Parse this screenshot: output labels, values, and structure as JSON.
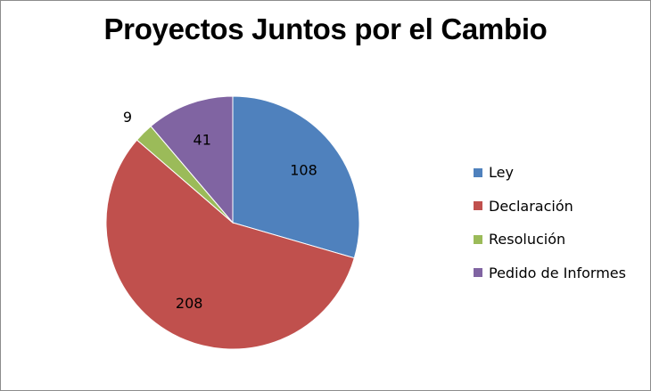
{
  "chart_data": {
    "type": "pie",
    "title": "Proyectos Juntos por el Cambio",
    "categories": [
      "Ley",
      "Declaración",
      "Resolución",
      "Pedido de Informes"
    ],
    "values": [
      108,
      208,
      9,
      41
    ],
    "colors": [
      "#4f81bd",
      "#c0504d",
      "#9bbb59",
      "#8064a2"
    ],
    "start_angle_deg": 0,
    "direction": "clockwise",
    "legend_position": "right",
    "data_labels": [
      "108",
      "208",
      "9",
      "41"
    ]
  }
}
